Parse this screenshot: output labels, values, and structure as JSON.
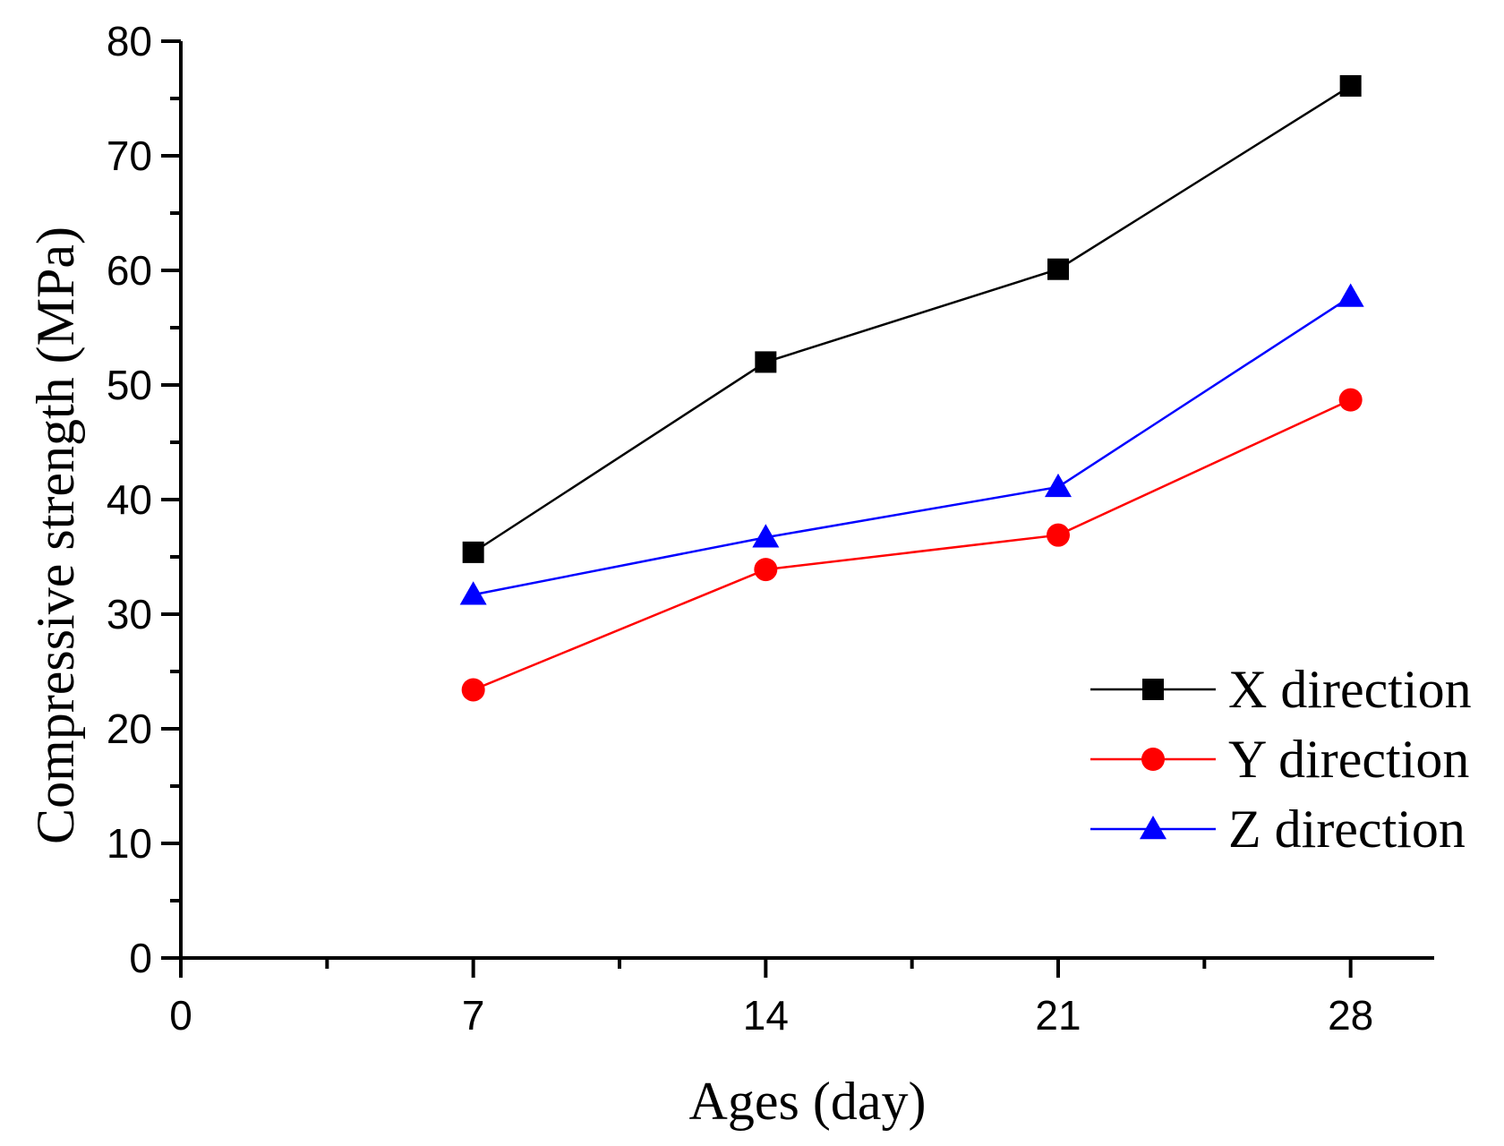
{
  "chart_data": {
    "type": "line",
    "title": "",
    "xlabel": "Ages (day)",
    "ylabel": "Compressive strength (MPa)",
    "xlim": [
      0,
      30
    ],
    "ylim": [
      0,
      80
    ],
    "xticks": [
      0,
      7,
      14,
      21,
      28
    ],
    "yticks": [
      0,
      10,
      20,
      30,
      40,
      50,
      60,
      70,
      80
    ],
    "grid": false,
    "legend_position": "bottom-right",
    "x": [
      7,
      14,
      21,
      28
    ],
    "series": [
      {
        "name": "X direction",
        "values": [
          35.4,
          52.0,
          60.1,
          76.1
        ],
        "color": "#000000",
        "marker": "square"
      },
      {
        "name": "Y direction",
        "values": [
          23.4,
          33.9,
          36.9,
          48.7
        ],
        "color": "#ff0000",
        "marker": "circle"
      },
      {
        "name": "Z direction",
        "values": [
          31.7,
          36.7,
          41.1,
          57.7
        ],
        "color": "#0000ff",
        "marker": "triangle"
      }
    ]
  }
}
